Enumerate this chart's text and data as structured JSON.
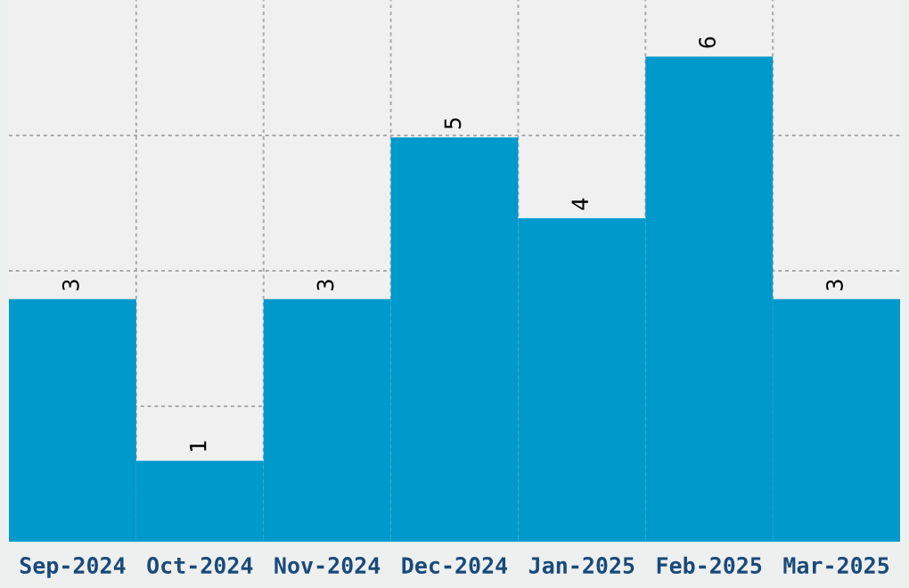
{
  "chart_data": {
    "type": "bar",
    "categories": [
      "Sep-2024",
      "Oct-2024",
      "Nov-2024",
      "Dec-2024",
      "Jan-2025",
      "Feb-2025",
      "Mar-2025"
    ],
    "values": [
      3,
      1,
      3,
      5,
      4,
      6,
      3
    ],
    "color": "#0099cc",
    "relative": false,
    "ylim": [
      0,
      6.7
    ],
    "yticks": [
      {
        "value": 1.675,
        "label": null
      },
      {
        "value": 3.35,
        "label": null
      },
      {
        "value": 5.025,
        "label": null
      }
    ],
    "tick_labels": "x",
    "grid": true,
    "data_labels": true
  }
}
